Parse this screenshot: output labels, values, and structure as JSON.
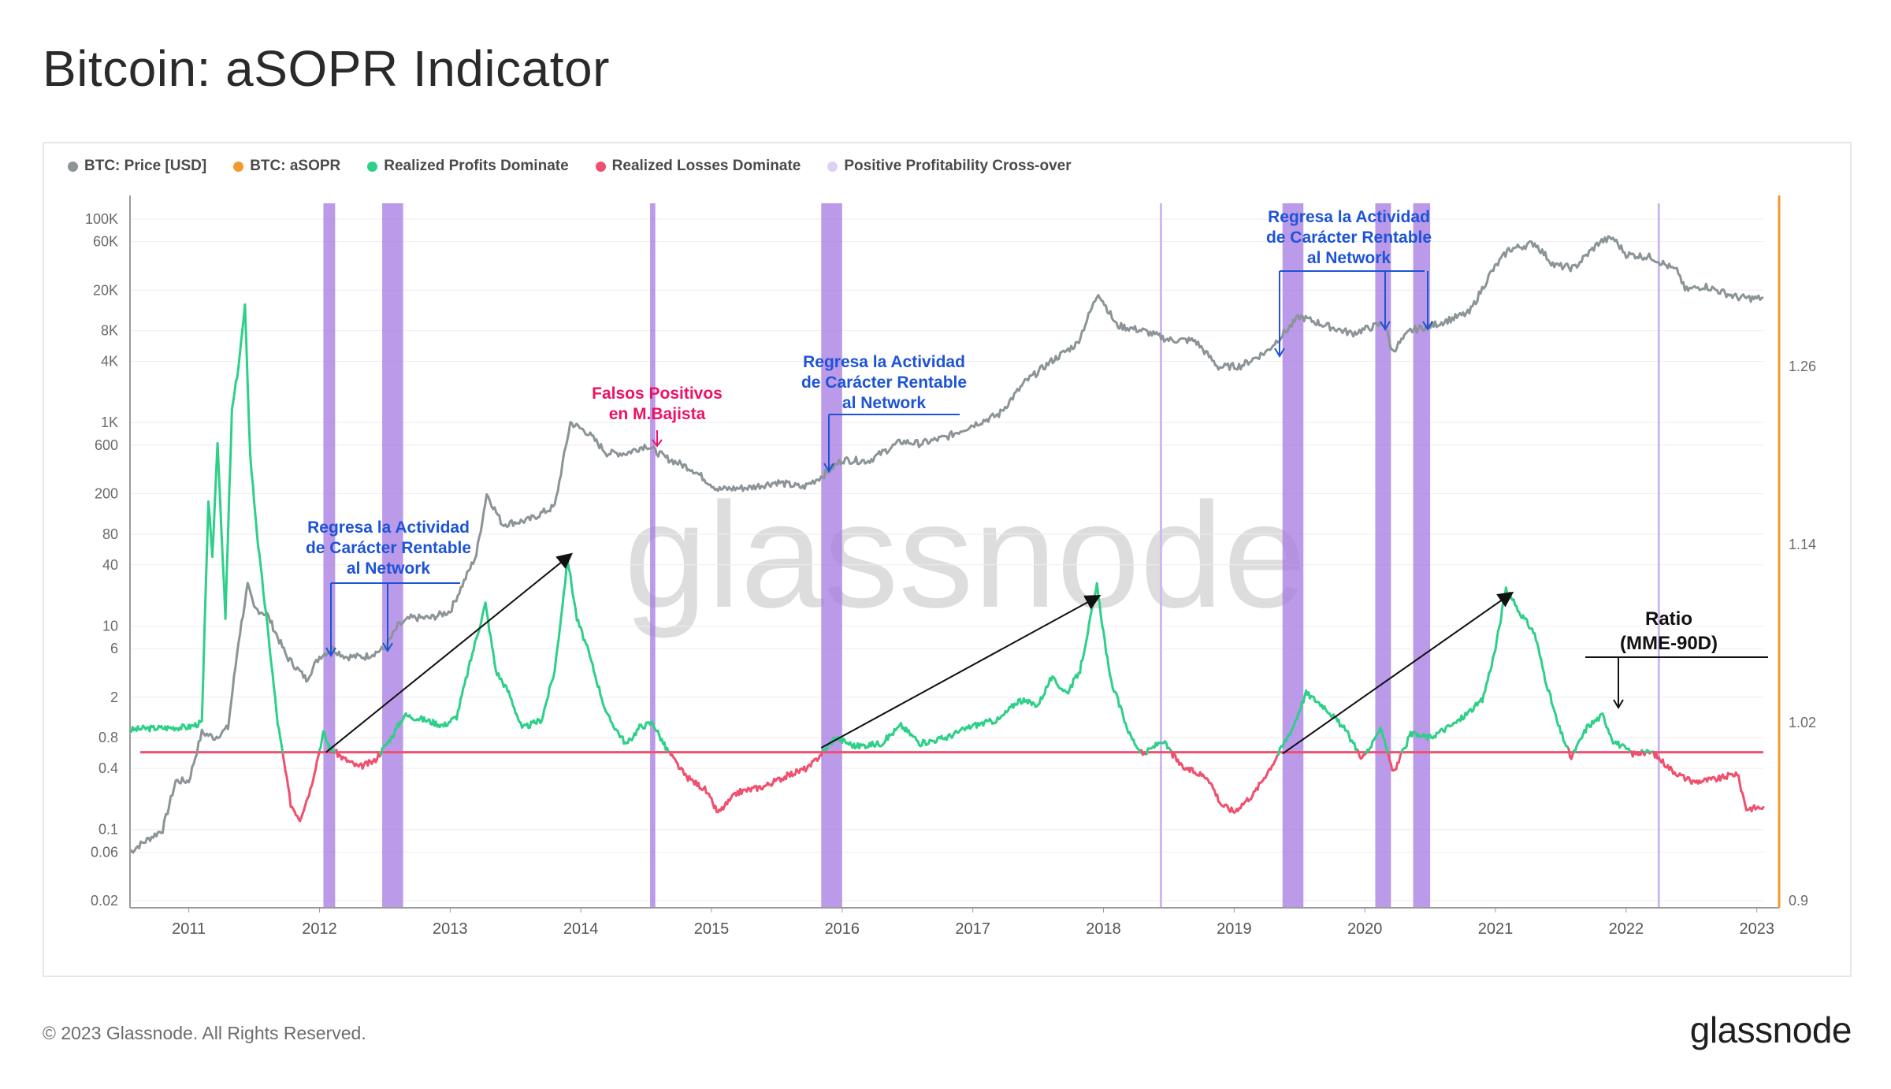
{
  "title": "Bitcoin: aSOPR Indicator",
  "footer": {
    "copyright": "© 2023 Glassnode. All Rights Reserved.",
    "logo": "glassnode"
  },
  "watermark": "glassnode",
  "legend": [
    {
      "label": "BTC: Price [USD]",
      "color": "#8b9496"
    },
    {
      "label": "BTC: aSOPR",
      "color": "#f29a2e"
    },
    {
      "label": "Realized Profits Dominate",
      "color": "#2ed089"
    },
    {
      "label": "Realized Losses Dominate",
      "color": "#f0506e"
    },
    {
      "label": "Positive Profitability Cross-over",
      "color": "#ddd0f5"
    }
  ],
  "colors": {
    "price": "#8b9496",
    "profit": "#2ed089",
    "loss": "#f0506e",
    "baseline": "#f0506e",
    "band": "#a478e2",
    "thin_band": "#cdb9f0",
    "right_axis": "#f29a2e",
    "grid": "#eeeeee"
  },
  "annotations": {
    "blue_1": [
      "Regresa la Actividad",
      "de Carácter Rentable",
      "al Network"
    ],
    "blue_2": [
      "Regresa la Actividad",
      "de Carácter Rentable",
      "al Network"
    ],
    "blue_3": [
      "Regresa la Actividad",
      "de Carácter Rentable",
      "al Network"
    ],
    "red_1": [
      "Falsos Positivos",
      "en M.Bajista"
    ],
    "ratio": [
      "Ratio",
      "(MME-90D)"
    ]
  },
  "chart_data": {
    "type": "line",
    "title": "Bitcoin: aSOPR Indicator",
    "x_range": [
      2010.55,
      2023.05
    ],
    "x_ticks": [
      "2011",
      "2012",
      "2013",
      "2014",
      "2015",
      "2016",
      "2017",
      "2018",
      "2019",
      "2020",
      "2021",
      "2022",
      "2023"
    ],
    "left_axis": {
      "scale": "log",
      "label": "BTC: Price [USD]",
      "ticks": [
        "100K",
        "60K",
        "20K",
        "8K",
        "4K",
        "1K",
        "600",
        "200",
        "80",
        "40",
        "10",
        "6",
        "2",
        "0.8",
        "0.4",
        "0.1",
        "0.06",
        "0.02"
      ]
    },
    "right_axis": {
      "scale": "linear",
      "label": "BTC: aSOPR",
      "range": [
        0.9,
        1.38
      ],
      "ticks": [
        "1.26",
        "1.14",
        "1.02",
        "0.9"
      ]
    },
    "baseline_asopr": 1.0,
    "series": [
      {
        "name": "BTC: Price [USD]",
        "axis": "left",
        "points": [
          [
            2010.55,
            0.06
          ],
          [
            2010.62,
            0.07
          ],
          [
            2010.8,
            0.1
          ],
          [
            2010.9,
            0.3
          ],
          [
            2011.0,
            0.3
          ],
          [
            2011.1,
            0.9
          ],
          [
            2011.2,
            0.8
          ],
          [
            2011.3,
            1.0
          ],
          [
            2011.38,
            7.0
          ],
          [
            2011.45,
            25
          ],
          [
            2011.5,
            15
          ],
          [
            2011.6,
            13
          ],
          [
            2011.75,
            5
          ],
          [
            2011.9,
            3
          ],
          [
            2012.0,
            5
          ],
          [
            2012.1,
            6
          ],
          [
            2012.2,
            5
          ],
          [
            2012.35,
            5
          ],
          [
            2012.5,
            6
          ],
          [
            2012.6,
            10
          ],
          [
            2012.7,
            12
          ],
          [
            2012.85,
            12
          ],
          [
            2013.0,
            14
          ],
          [
            2013.2,
            50
          ],
          [
            2013.28,
            200
          ],
          [
            2013.4,
            100
          ],
          [
            2013.6,
            110
          ],
          [
            2013.8,
            150
          ],
          [
            2013.92,
            1000
          ],
          [
            2014.05,
            800
          ],
          [
            2014.2,
            500
          ],
          [
            2014.35,
            500
          ],
          [
            2014.5,
            600
          ],
          [
            2014.65,
            450
          ],
          [
            2014.85,
            350
          ],
          [
            2015.05,
            220
          ],
          [
            2015.3,
            230
          ],
          [
            2015.5,
            260
          ],
          [
            2015.7,
            230
          ],
          [
            2015.85,
            300
          ],
          [
            2016.0,
            430
          ],
          [
            2016.2,
            420
          ],
          [
            2016.45,
            650
          ],
          [
            2016.6,
            620
          ],
          [
            2016.8,
            720
          ],
          [
            2017.0,
            950
          ],
          [
            2017.2,
            1200
          ],
          [
            2017.4,
            2500
          ],
          [
            2017.6,
            4000
          ],
          [
            2017.8,
            6000
          ],
          [
            2017.96,
            19000
          ],
          [
            2018.1,
            9000
          ],
          [
            2018.3,
            8000
          ],
          [
            2018.5,
            6500
          ],
          [
            2018.7,
            6400
          ],
          [
            2018.88,
            3500
          ],
          [
            2019.05,
            3600
          ],
          [
            2019.25,
            5000
          ],
          [
            2019.5,
            11000
          ],
          [
            2019.7,
            9000
          ],
          [
            2019.9,
            7500
          ],
          [
            2020.15,
            9500
          ],
          [
            2020.21,
            5000
          ],
          [
            2020.35,
            8000
          ],
          [
            2020.55,
            9300
          ],
          [
            2020.8,
            12000
          ],
          [
            2020.96,
            29000
          ],
          [
            2021.1,
            50000
          ],
          [
            2021.3,
            58000
          ],
          [
            2021.45,
            35000
          ],
          [
            2021.6,
            33000
          ],
          [
            2021.8,
            60000
          ],
          [
            2021.9,
            65000
          ],
          [
            2022.0,
            45000
          ],
          [
            2022.2,
            42000
          ],
          [
            2022.4,
            30000
          ],
          [
            2022.45,
            20000
          ],
          [
            2022.6,
            22000
          ],
          [
            2022.85,
            17000
          ],
          [
            2023.0,
            16500
          ],
          [
            2023.05,
            17000
          ]
        ]
      },
      {
        "name": "BTC: aSOPR",
        "axis": "right",
        "points": [
          [
            2010.55,
            1.015
          ],
          [
            2010.65,
            1.016
          ],
          [
            2011.0,
            1.017
          ],
          [
            2011.1,
            1.02
          ],
          [
            2011.15,
            1.17
          ],
          [
            2011.18,
            1.13
          ],
          [
            2011.22,
            1.21
          ],
          [
            2011.28,
            1.09
          ],
          [
            2011.33,
            1.23
          ],
          [
            2011.38,
            1.26
          ],
          [
            2011.43,
            1.3
          ],
          [
            2011.47,
            1.2
          ],
          [
            2011.53,
            1.14
          ],
          [
            2011.62,
            1.07
          ],
          [
            2011.68,
            1.02
          ],
          [
            2011.78,
            0.965
          ],
          [
            2011.85,
            0.955
          ],
          [
            2011.93,
            0.975
          ],
          [
            2012.03,
            1.013
          ],
          [
            2012.08,
            1.003
          ],
          [
            2012.18,
            0.996
          ],
          [
            2012.3,
            0.99
          ],
          [
            2012.42,
            0.994
          ],
          [
            2012.55,
            1.01
          ],
          [
            2012.65,
            1.025
          ],
          [
            2012.8,
            1.022
          ],
          [
            2012.95,
            1.018
          ],
          [
            2013.05,
            1.024
          ],
          [
            2013.18,
            1.07
          ],
          [
            2013.27,
            1.1
          ],
          [
            2013.35,
            1.055
          ],
          [
            2013.45,
            1.04
          ],
          [
            2013.55,
            1.016
          ],
          [
            2013.7,
            1.022
          ],
          [
            2013.8,
            1.055
          ],
          [
            2013.9,
            1.13
          ],
          [
            2013.97,
            1.09
          ],
          [
            2014.05,
            1.07
          ],
          [
            2014.2,
            1.025
          ],
          [
            2014.35,
            1.005
          ],
          [
            2014.45,
            1.017
          ],
          [
            2014.55,
            1.02
          ],
          [
            2014.65,
            1.003
          ],
          [
            2014.8,
            0.984
          ],
          [
            2014.95,
            0.975
          ],
          [
            2015.05,
            0.959
          ],
          [
            2015.2,
            0.973
          ],
          [
            2015.4,
            0.977
          ],
          [
            2015.6,
            0.985
          ],
          [
            2015.75,
            0.99
          ],
          [
            2015.85,
            1.0
          ],
          [
            2015.95,
            1.01
          ],
          [
            2016.1,
            1.004
          ],
          [
            2016.3,
            1.006
          ],
          [
            2016.45,
            1.018
          ],
          [
            2016.6,
            1.006
          ],
          [
            2016.8,
            1.01
          ],
          [
            2017.0,
            1.018
          ],
          [
            2017.2,
            1.022
          ],
          [
            2017.35,
            1.035
          ],
          [
            2017.5,
            1.032
          ],
          [
            2017.6,
            1.05
          ],
          [
            2017.72,
            1.04
          ],
          [
            2017.82,
            1.055
          ],
          [
            2017.95,
            1.112
          ],
          [
            2018.05,
            1.05
          ],
          [
            2018.2,
            1.012
          ],
          [
            2018.3,
            0.998
          ],
          [
            2018.45,
            1.008
          ],
          [
            2018.6,
            0.99
          ],
          [
            2018.8,
            0.983
          ],
          [
            2018.9,
            0.965
          ],
          [
            2019.0,
            0.96
          ],
          [
            2019.15,
            0.972
          ],
          [
            2019.3,
            0.993
          ],
          [
            2019.45,
            1.017
          ],
          [
            2019.55,
            1.04
          ],
          [
            2019.7,
            1.03
          ],
          [
            2019.85,
            1.015
          ],
          [
            2019.98,
            0.996
          ],
          [
            2020.08,
            1.008
          ],
          [
            2020.12,
            1.018
          ],
          [
            2020.22,
            0.986
          ],
          [
            2020.35,
            1.012
          ],
          [
            2020.5,
            1.01
          ],
          [
            2020.7,
            1.02
          ],
          [
            2020.9,
            1.035
          ],
          [
            2021.0,
            1.07
          ],
          [
            2021.08,
            1.11
          ],
          [
            2021.18,
            1.095
          ],
          [
            2021.3,
            1.08
          ],
          [
            2021.38,
            1.05
          ],
          [
            2021.48,
            1.018
          ],
          [
            2021.58,
            0.996
          ],
          [
            2021.7,
            1.017
          ],
          [
            2021.82,
            1.025
          ],
          [
            2021.9,
            1.008
          ],
          [
            2022.05,
            0.999
          ],
          [
            2022.2,
            1.0
          ],
          [
            2022.35,
            0.988
          ],
          [
            2022.5,
            0.98
          ],
          [
            2022.7,
            0.982
          ],
          [
            2022.85,
            0.986
          ],
          [
            2022.92,
            0.962
          ],
          [
            2023.05,
            0.963
          ]
        ]
      }
    ],
    "highlight_bands": [
      [
        2012.03,
        2012.12
      ],
      [
        2012.48,
        2012.64
      ],
      [
        2014.53,
        2014.57
      ],
      [
        2015.84,
        2016.0
      ],
      [
        2019.37,
        2019.53
      ],
      [
        2020.08,
        2020.2
      ],
      [
        2020.37,
        2020.5
      ]
    ],
    "thin_lines": [
      2018.44,
      2022.25
    ],
    "trend_arrows": [
      [
        [
          2012.05,
          1.0
        ],
        [
          2013.92,
          1.133
        ]
      ],
      [
        [
          2015.84,
          1.003
        ],
        [
          2017.96,
          1.105
        ]
      ],
      [
        [
          2019.37,
          0.999
        ],
        [
          2021.12,
          1.107
        ]
      ]
    ]
  }
}
